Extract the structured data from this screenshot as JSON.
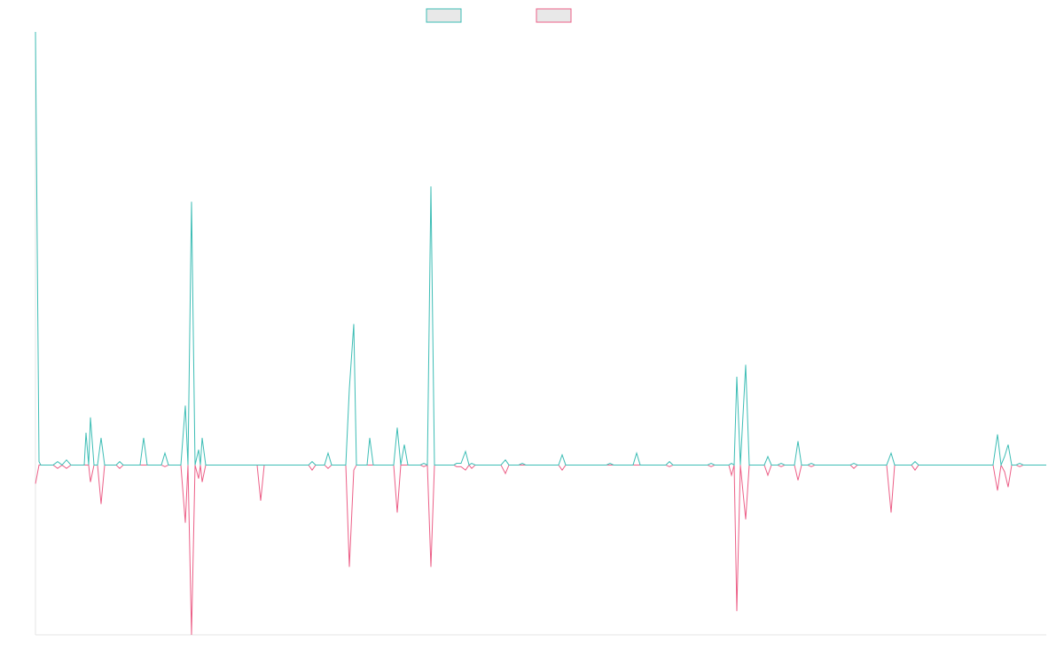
{
  "chart_data": {
    "type": "line",
    "x": [
      0,
      4,
      6,
      20,
      25,
      30,
      35,
      40,
      55,
      57,
      60,
      62,
      66,
      70,
      74,
      78,
      91,
      95,
      99,
      118,
      122,
      126,
      142,
      146,
      150,
      164,
      169,
      172,
      176,
      180,
      184,
      186,
      188,
      192,
      250,
      254,
      258,
      308,
      312,
      316,
      326,
      330,
      334,
      350,
      354,
      359,
      362,
      374,
      377,
      381,
      404,
      408,
      412,
      416,
      420,
      434,
      438,
      442,
      446,
      450,
      472,
      475,
      480,
      485,
      489,
      492,
      496,
      525,
      530,
      534,
      545,
      549,
      553,
      590,
      594,
      598,
      644,
      648,
      652,
      674,
      678,
      682,
      711,
      715,
      719,
      758,
      762,
      766,
      782,
      785,
      788,
      791,
      795,
      801,
      805,
      822,
      826,
      830,
      837,
      841,
      845,
      856,
      860,
      864,
      871,
      875,
      879,
      919,
      923,
      927,
      960,
      965,
      969,
      988,
      992,
      996,
      1080,
      1085,
      1089,
      1093,
      1097,
      1101,
      1106,
      1110,
      1114,
      1140
    ],
    "series": [
      {
        "color": "#3dbdb5",
        "values": [
          255,
          2,
          0,
          0,
          2,
          0,
          3,
          0,
          0,
          19,
          0,
          28,
          0,
          0,
          16,
          0,
          0,
          2,
          0,
          0,
          16,
          0,
          0,
          7,
          0,
          0,
          35,
          0,
          155,
          0,
          9,
          0,
          16,
          0,
          0,
          0,
          0,
          0,
          2,
          0,
          0,
          7,
          0,
          0,
          45,
          83,
          0,
          0,
          16,
          0,
          0,
          22,
          0,
          12,
          0,
          0,
          1,
          0,
          164,
          0,
          0,
          1,
          1,
          8,
          0,
          1,
          0,
          0,
          3,
          0,
          0,
          1,
          0,
          0,
          6,
          0,
          0,
          1,
          0,
          0,
          7,
          0,
          0,
          2,
          0,
          0,
          1,
          0,
          0,
          1,
          0,
          52,
          0,
          59,
          0,
          0,
          5,
          0,
          0,
          1,
          0,
          0,
          14,
          0,
          0,
          1,
          0,
          0,
          1,
          0,
          0,
          7,
          0,
          0,
          2,
          0,
          0,
          18,
          0,
          5,
          12,
          0,
          0,
          1,
          0,
          0
        ]
      },
      {
        "color": "#ec5f87",
        "values": [
          -11,
          0,
          0,
          0,
          -2,
          0,
          -2,
          0,
          0,
          0,
          0,
          -10,
          0,
          0,
          -23,
          0,
          0,
          -2,
          0,
          0,
          0,
          0,
          0,
          -1,
          0,
          0,
          -34,
          0,
          -100,
          0,
          -8,
          0,
          -10,
          0,
          0,
          -21,
          0,
          0,
          -3,
          0,
          0,
          -2,
          0,
          0,
          -60,
          -3,
          0,
          0,
          0,
          0,
          0,
          -28,
          0,
          0,
          0,
          0,
          -1,
          0,
          -60,
          0,
          0,
          -1,
          -1,
          -3,
          0,
          -2,
          0,
          0,
          -5,
          0,
          0,
          0,
          0,
          0,
          -3,
          0,
          0,
          0,
          0,
          0,
          0,
          0,
          0,
          -1,
          0,
          0,
          -1,
          0,
          0,
          -6,
          0,
          -86,
          0,
          -32,
          0,
          0,
          -6,
          0,
          0,
          -1,
          0,
          0,
          -9,
          0,
          0,
          -1,
          0,
          0,
          -2,
          0,
          0,
          -28,
          0,
          0,
          -3,
          0,
          0,
          -15,
          0,
          -4,
          -13,
          0,
          0,
          -1,
          0,
          0
        ]
      }
    ],
    "xlim": [
      0,
      1140
    ],
    "ylim": [
      -100,
      255
    ]
  }
}
